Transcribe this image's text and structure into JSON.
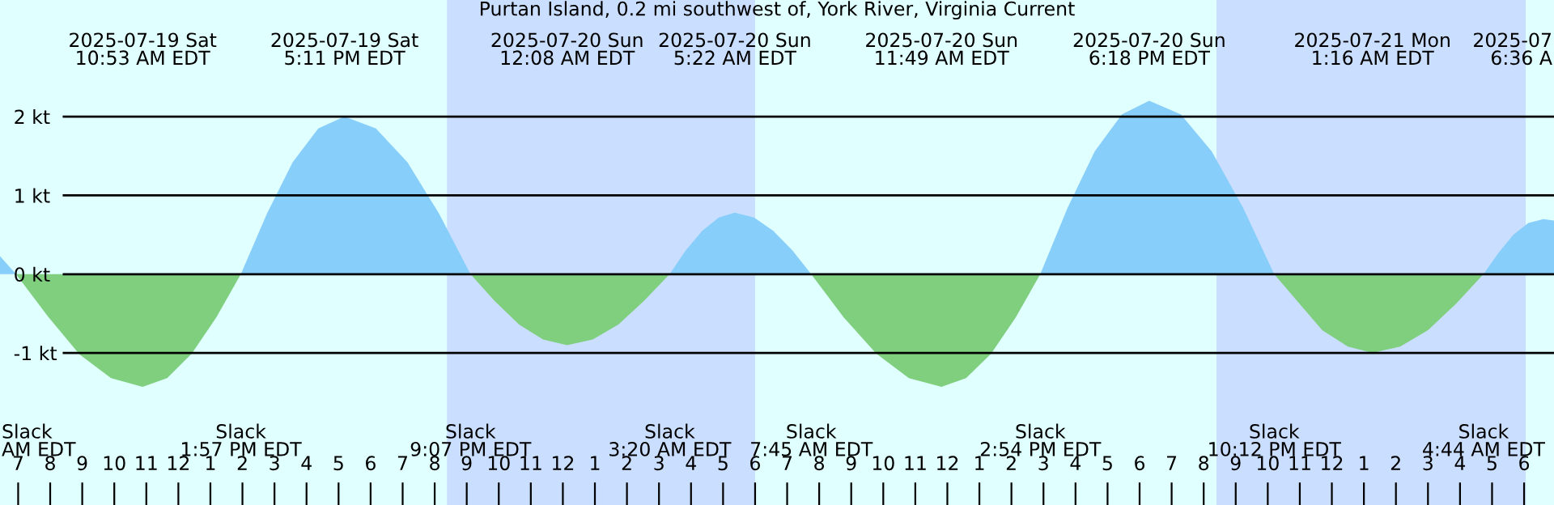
{
  "chart_data": {
    "type": "area",
    "title": "Purtan Island, 0.2 mi southwest of, York River, Virginia Current",
    "x": [
      "2025-07-19T06:26",
      "2025-07-19T06:56",
      "2025-07-19T07:56",
      "2025-07-19T08:55",
      "2025-07-19T09:54",
      "2025-07-19T10:53",
      "2025-07-19T11:39",
      "2025-07-19T12:25",
      "2025-07-19T13:11",
      "2025-07-19T13:57",
      "2025-07-19T14:46",
      "2025-07-19T15:34",
      "2025-07-19T16:22",
      "2025-07-19T17:11",
      "2025-07-19T18:10",
      "2025-07-19T19:09",
      "2025-07-19T20:08",
      "2025-07-19T21:07",
      "2025-07-19T21:52",
      "2025-07-19T22:38",
      "2025-07-19T23:23",
      "2025-07-20T00:08",
      "2025-07-20T00:56",
      "2025-07-20T01:44",
      "2025-07-20T02:32",
      "2025-07-20T03:20",
      "2025-07-20T03:50",
      "2025-07-20T04:21",
      "2025-07-20T04:52",
      "2025-07-20T05:22",
      "2025-07-20T05:58",
      "2025-07-20T06:34",
      "2025-07-20T07:10",
      "2025-07-20T07:45",
      "2025-07-20T08:46",
      "2025-07-20T09:47",
      "2025-07-20T10:48",
      "2025-07-20T11:49",
      "2025-07-20T12:35",
      "2025-07-20T13:22",
      "2025-07-20T14:08",
      "2025-07-20T14:54",
      "2025-07-20T15:45",
      "2025-07-20T16:36",
      "2025-07-20T17:27",
      "2025-07-20T18:18",
      "2025-07-20T19:17",
      "2025-07-20T20:15",
      "2025-07-20T21:14",
      "2025-07-20T22:12",
      "2025-07-20T23:00",
      "2025-07-20T23:42",
      "2025-07-21T00:30",
      "2025-07-21T01:16",
      "2025-07-21T02:08",
      "2025-07-21T03:00",
      "2025-07-21T03:52",
      "2025-07-21T04:44",
      "2025-07-21T05:12",
      "2025-07-21T05:40",
      "2025-07-21T06:08",
      "2025-07-21T06:36",
      "2025-07-21T06:56"
    ],
    "series": [
      {
        "color": "#87cefa",
        "values": [
          0.23,
          0,
          null,
          null,
          null,
          null,
          null,
          null,
          null,
          0,
          0.77,
          1.42,
          1.85,
          2.0,
          1.85,
          1.42,
          0.77,
          0,
          null,
          null,
          null,
          null,
          null,
          null,
          null,
          0,
          0.3,
          0.55,
          0.72,
          0.78,
          0.72,
          0.55,
          0.3,
          0,
          null,
          null,
          null,
          null,
          null,
          null,
          null,
          0,
          0.84,
          1.56,
          2.03,
          2.2,
          2.03,
          1.56,
          0.84,
          0,
          null,
          null,
          null,
          null,
          null,
          null,
          null,
          0,
          0.27,
          0.5,
          0.65,
          0.7,
          0.68
        ]
      },
      {
        "color": "#80cf7f",
        "values": [
          null,
          0,
          -0.54,
          -1.02,
          -1.32,
          -1.43,
          -1.32,
          -1.01,
          -0.55,
          0,
          null,
          null,
          null,
          null,
          null,
          null,
          null,
          0,
          -0.34,
          -0.64,
          -0.83,
          -0.9,
          -0.83,
          -0.64,
          -0.34,
          0,
          null,
          null,
          null,
          null,
          null,
          null,
          null,
          0,
          -0.55,
          -1.01,
          -1.32,
          -1.43,
          -1.32,
          -1.01,
          -0.55,
          0,
          null,
          null,
          null,
          null,
          null,
          null,
          null,
          0,
          -0.38,
          -0.71,
          -0.92,
          -1.0,
          -0.92,
          -0.71,
          -0.38,
          0,
          null,
          null,
          null,
          null,
          null
        ]
      }
    ],
    "xlim": [
      "2025-07-19T06:26",
      "2025-07-21T06:56"
    ],
    "ylim": [
      -2.93,
      3.48
    ],
    "yticks": [
      {
        "value": -1,
        "label": "-1 kt"
      },
      {
        "value": 0,
        "label": "0 kt"
      },
      {
        "value": 1,
        "label": "1 kt"
      },
      {
        "value": 2,
        "label": "2 kt"
      }
    ],
    "xticks": [
      {
        "value": "2025-07-19T07:00",
        "label": "7"
      },
      {
        "value": "2025-07-19T08:00",
        "label": "8"
      },
      {
        "value": "2025-07-19T09:00",
        "label": "9"
      },
      {
        "value": "2025-07-19T10:00",
        "label": "10"
      },
      {
        "value": "2025-07-19T11:00",
        "label": "11"
      },
      {
        "value": "2025-07-19T12:00",
        "label": "12"
      },
      {
        "value": "2025-07-19T13:00",
        "label": "1"
      },
      {
        "value": "2025-07-19T14:00",
        "label": "2"
      },
      {
        "value": "2025-07-19T15:00",
        "label": "3"
      },
      {
        "value": "2025-07-19T16:00",
        "label": "4"
      },
      {
        "value": "2025-07-19T17:00",
        "label": "5"
      },
      {
        "value": "2025-07-19T18:00",
        "label": "6"
      },
      {
        "value": "2025-07-19T19:00",
        "label": "7"
      },
      {
        "value": "2025-07-19T20:00",
        "label": "8"
      },
      {
        "value": "2025-07-19T21:00",
        "label": "9"
      },
      {
        "value": "2025-07-19T22:00",
        "label": "10"
      },
      {
        "value": "2025-07-19T23:00",
        "label": "11"
      },
      {
        "value": "2025-07-20T00:00",
        "label": "12"
      },
      {
        "value": "2025-07-20T01:00",
        "label": "1"
      },
      {
        "value": "2025-07-20T02:00",
        "label": "2"
      },
      {
        "value": "2025-07-20T03:00",
        "label": "3"
      },
      {
        "value": "2025-07-20T04:00",
        "label": "4"
      },
      {
        "value": "2025-07-20T05:00",
        "label": "5"
      },
      {
        "value": "2025-07-20T06:00",
        "label": "6"
      },
      {
        "value": "2025-07-20T07:00",
        "label": "7"
      },
      {
        "value": "2025-07-20T08:00",
        "label": "8"
      },
      {
        "value": "2025-07-20T09:00",
        "label": "9"
      },
      {
        "value": "2025-07-20T10:00",
        "label": "10"
      },
      {
        "value": "2025-07-20T11:00",
        "label": "11"
      },
      {
        "value": "2025-07-20T12:00",
        "label": "12"
      },
      {
        "value": "2025-07-20T13:00",
        "label": "1"
      },
      {
        "value": "2025-07-20T14:00",
        "label": "2"
      },
      {
        "value": "2025-07-20T15:00",
        "label": "3"
      },
      {
        "value": "2025-07-20T16:00",
        "label": "4"
      },
      {
        "value": "2025-07-20T17:00",
        "label": "5"
      },
      {
        "value": "2025-07-20T18:00",
        "label": "6"
      },
      {
        "value": "2025-07-20T19:00",
        "label": "7"
      },
      {
        "value": "2025-07-20T20:00",
        "label": "8"
      },
      {
        "value": "2025-07-20T21:00",
        "label": "9"
      },
      {
        "value": "2025-07-20T22:00",
        "label": "10"
      },
      {
        "value": "2025-07-20T23:00",
        "label": "11"
      },
      {
        "value": "2025-07-21T00:00",
        "label": "12"
      },
      {
        "value": "2025-07-21T01:00",
        "label": "1"
      },
      {
        "value": "2025-07-21T02:00",
        "label": "2"
      },
      {
        "value": "2025-07-21T03:00",
        "label": "3"
      },
      {
        "value": "2025-07-21T04:00",
        "label": "4"
      },
      {
        "value": "2025-07-21T05:00",
        "label": "5"
      },
      {
        "value": "2025-07-21T06:00",
        "label": "6"
      }
    ],
    "grid": "y",
    "bands": [
      {
        "axis": "x",
        "from": "2025-07-19T20:23",
        "to": "2025-07-20T06:00",
        "color": "#cadeff"
      },
      {
        "axis": "x",
        "from": "2025-07-20T20:24",
        "to": "2025-07-21T06:03",
        "color": "#cadeff"
      }
    ],
    "annotations": [
      "Slack\nAM EDT",
      "2025-07-19 Sat\n10:53 AM EDT",
      "Slack\n1:57 PM EDT",
      "2025-07-19 Sat\n5:11 PM EDT",
      "Slack\n9:07 PM EDT",
      "2025-07-20 Sun\n12:08 AM EDT",
      "Slack\n3:20 AM EDT",
      "2025-07-20 Sun\n5:22 AM EDT",
      "Slack\n7:45 AM EDT",
      "2025-07-20 Sun\n11:49 AM EDT",
      "Slack\n2:54 PM EDT",
      "2025-07-20 Sun\n6:18 PM EDT",
      "Slack\n10:12 PM EDT",
      "2025-07-21 Mon\n1:16 AM EDT",
      "Slack\n4:44 AM EDT",
      "2025-07\n6:36 A"
    ]
  }
}
